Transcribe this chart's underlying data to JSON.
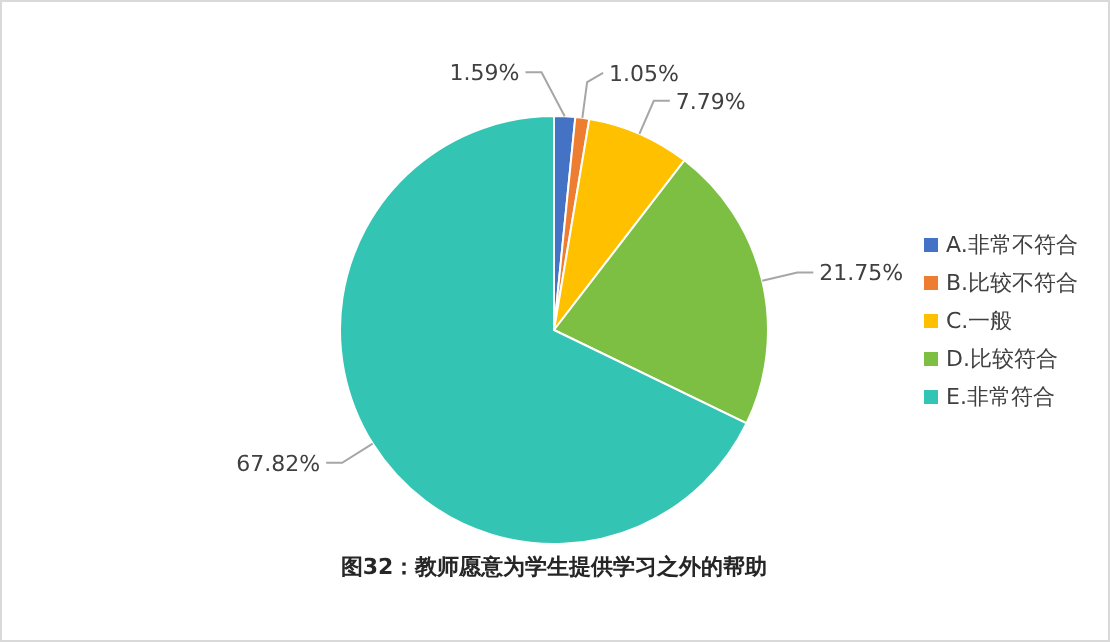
{
  "chart_data": {
    "type": "pie",
    "title": "图32：教师愿意为学生提供学习之外的帮助",
    "categories": [
      "A.非常不符合",
      "B.比较不符合",
      "C.一般",
      "D.比较符合",
      "E.非常符合"
    ],
    "values": [
      1.59,
      1.05,
      7.79,
      21.75,
      67.82
    ],
    "value_labels": [
      "1.59%",
      "1.05%",
      "7.79%",
      "21.75%",
      "67.82%"
    ],
    "colors": [
      "#4472c4",
      "#ed7d31",
      "#ffc000",
      "#7cbf42",
      "#33c4b4"
    ],
    "legend": "right"
  }
}
